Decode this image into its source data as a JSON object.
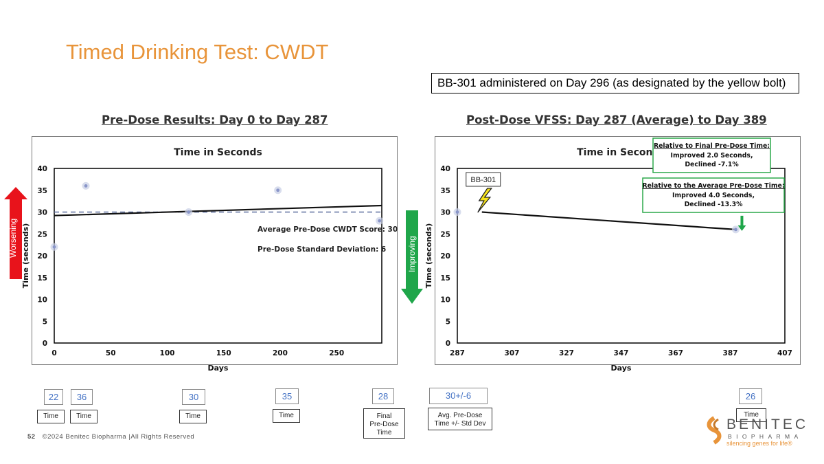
{
  "slide": {
    "title": "Timed Drinking Test: CWDT",
    "bolt_note": "BB-301 administered on Day 296 (as designated by the yellow bolt)",
    "pre_heading": "Pre-Dose Results: Day 0 to Day 287",
    "post_heading": "Post-Dose VFSS: Day 287 (Average) to Day 389",
    "worsening_label": "Worsening",
    "improving_label": "Improving",
    "footer_page": "52",
    "footer_text": "©2024 Benitec Biopharma |All Rights Reserved",
    "logo": {
      "name": "BENITEC",
      "sub": "BIOPHARMA",
      "tagline": "silencing genes for life®"
    }
  },
  "colors": {
    "title": "#E8943A",
    "up_arrow": "#E8131B",
    "down_arrow": "#1FA64A",
    "value_text": "#4472C4",
    "points": "#8A96C9",
    "callout_border": "#2BA84A",
    "bolt": "#F5E21B"
  },
  "chart_data": [
    {
      "type": "scatter",
      "title": "Time in Seconds",
      "xlabel": "Days",
      "ylabel": "Time (seconds)",
      "xlim": [
        0,
        290
      ],
      "ylim": [
        0,
        40
      ],
      "xticks": [
        0,
        50,
        100,
        150,
        200,
        250
      ],
      "yticks": [
        0,
        5,
        10,
        15,
        20,
        25,
        30,
        35,
        40
      ],
      "points": [
        {
          "x": 0,
          "y": 22
        },
        {
          "x": 28,
          "y": 36
        },
        {
          "x": 119,
          "y": 30
        },
        {
          "x": 198,
          "y": 35
        },
        {
          "x": 288,
          "y": 28
        }
      ],
      "trendline": {
        "x": [
          0,
          290
        ],
        "y": [
          29.2,
          31.5
        ]
      },
      "average_line": {
        "y": 30,
        "style": "dashed"
      },
      "annotations": [
        "Average Pre-Dose CWDT Score: 30",
        "Pre-Dose Standard Deviation: 6"
      ]
    },
    {
      "type": "scatter",
      "title": "Time in Seconds",
      "xlabel": "Days",
      "ylabel": "Time (seconds)",
      "xlim": [
        287,
        407
      ],
      "ylim": [
        0,
        40
      ],
      "xticks": [
        287,
        307,
        327,
        347,
        367,
        387,
        407
      ],
      "yticks": [
        0,
        5,
        10,
        15,
        20,
        25,
        30,
        35,
        40
      ],
      "points": [
        {
          "x": 287,
          "y": 30
        },
        {
          "x": 389,
          "y": 26
        }
      ],
      "trendline": {
        "x": [
          296,
          389
        ],
        "y": [
          30,
          26
        ]
      },
      "bolt_label": "BB-301",
      "bolt_day": 296,
      "callouts": [
        {
          "heading": "Relative to Final Pre-Dose Time:",
          "lines": [
            "Improved 2.0 Seconds,",
            "Declined -7.1%"
          ]
        },
        {
          "heading": "Relative to the Average Pre-Dose Time:",
          "lines": [
            "Improved 4.0 Seconds,",
            "Declined -13.3%"
          ]
        }
      ]
    }
  ],
  "value_boxes": [
    {
      "value": "22",
      "label": "Time"
    },
    {
      "value": "36",
      "label": "Time"
    },
    {
      "value": "30",
      "label": "Time"
    },
    {
      "value": "35",
      "label": "Time"
    },
    {
      "value": "28",
      "label_lines": [
        "Final",
        "Pre-Dose",
        "Time"
      ]
    },
    {
      "value": "30+/-6",
      "label_lines": [
        "Avg. Pre-Dose",
        "Time +/- Std Dev"
      ]
    },
    {
      "value": "26",
      "label": "Time"
    }
  ]
}
